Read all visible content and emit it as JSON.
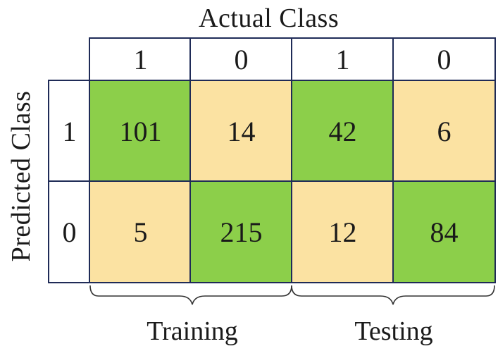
{
  "chart_data": {
    "type": "table",
    "title_top": "Actual Class",
    "title_left": "Predicted Class",
    "column_headers": [
      "1",
      "0",
      "1",
      "0"
    ],
    "row_headers": [
      "1",
      "0"
    ],
    "groups": [
      "Training",
      "Testing"
    ],
    "values": [
      [
        "101",
        "14",
        "42",
        "6"
      ],
      [
        "5",
        "215",
        "12",
        "84"
      ]
    ],
    "cell_colors": [
      [
        "#8ccf4a",
        "#fbe2a2",
        "#8ccf4a",
        "#fbe2a2"
      ],
      [
        "#fbe2a2",
        "#8ccf4a",
        "#fbe2a2",
        "#8ccf4a"
      ]
    ]
  }
}
